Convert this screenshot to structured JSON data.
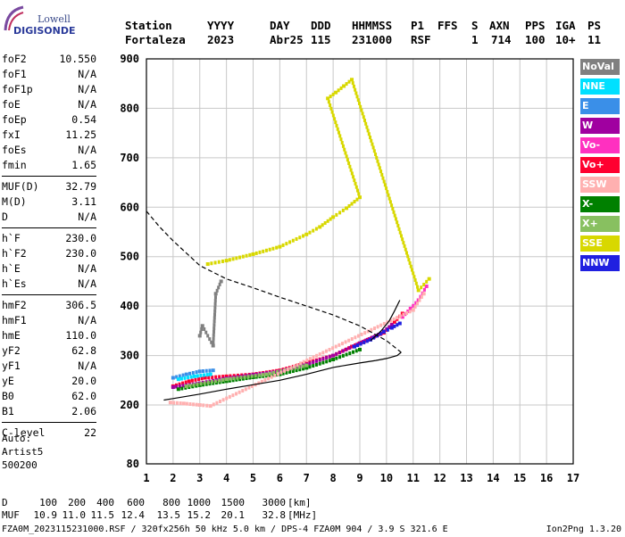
{
  "logo": {
    "line1": "Lowell",
    "line2": "DIGISONDE"
  },
  "header": {
    "labels": [
      "Station",
      "YYYY",
      "DAY",
      "DDD",
      "HHMMSS",
      "P1",
      "FFS",
      "S",
      "AXN",
      "PPS",
      "IGA",
      "PS"
    ],
    "values": [
      "Fortaleza",
      "2023",
      "Abr25",
      "115",
      "231000",
      "RSF",
      "1",
      "714",
      "100",
      "10+",
      "11"
    ]
  },
  "params": [
    [
      {
        "k": "foF2",
        "v": "10.550"
      },
      {
        "k": "foF1",
        "v": "N/A"
      },
      {
        "k": "foF1p",
        "v": "N/A"
      },
      {
        "k": "foE",
        "v": "N/A"
      },
      {
        "k": "foEp",
        "v": "0.54"
      },
      {
        "k": "fxI",
        "v": "11.25"
      },
      {
        "k": "foEs",
        "v": "N/A"
      },
      {
        "k": "fmin",
        "v": "1.65"
      }
    ],
    [
      {
        "k": "MUF(D)",
        "v": "32.79"
      },
      {
        "k": "M(D)",
        "v": "3.11"
      },
      {
        "k": "D",
        "v": "N/A"
      }
    ],
    [
      {
        "k": "h`F",
        "v": "230.0"
      },
      {
        "k": "h`F2",
        "v": "230.0"
      },
      {
        "k": "h`E",
        "v": "N/A"
      },
      {
        "k": "h`Es",
        "v": "N/A"
      }
    ],
    [
      {
        "k": "hmF2",
        "v": "306.5"
      },
      {
        "k": "hmF1",
        "v": "N/A"
      },
      {
        "k": "hmE",
        "v": "110.0"
      },
      {
        "k": "yF2",
        "v": "62.8"
      },
      {
        "k": "yF1",
        "v": "N/A"
      },
      {
        "k": "yE",
        "v": "20.0"
      },
      {
        "k": "B0",
        "v": "62.0"
      },
      {
        "k": "B1",
        "v": "2.06"
      }
    ],
    [
      {
        "k": "C-level",
        "v": "22"
      }
    ]
  ],
  "auto": {
    "line1": "Auto:",
    "line2": "Artist5",
    "line3": "500200"
  },
  "footer": {
    "d_label": "D",
    "d_values": [
      "100",
      "200",
      "400",
      "600",
      "800",
      "1000",
      "1500",
      "3000"
    ],
    "d_unit": "[km]",
    "muf_label": "MUF",
    "muf_values": [
      "10.9",
      "11.0",
      "11.5",
      "12.4",
      "13.5",
      "15.2",
      "20.1",
      "32.8"
    ],
    "muf_unit": "[MHz]",
    "fileline": "FZA0M_2023115231000.RSF / 320fx256h 50 kHz 5.0 km / DPS-4 FZA0M 904 / 3.9 S 321.6 E",
    "version": "Ion2Png 1.3.20"
  },
  "legend": [
    {
      "label": "NoVal",
      "color": "#808080"
    },
    {
      "label": "NNE",
      "color": "#00e0ff"
    },
    {
      "label": "E",
      "color": "#3a8fe8"
    },
    {
      "label": "W",
      "color": "#a000a0"
    },
    {
      "label": "Vo-",
      "color": "#ff30c0"
    },
    {
      "label": "Vo+",
      "color": "#ff0030"
    },
    {
      "label": "SSW",
      "color": "#ffb0b0"
    },
    {
      "label": "X-",
      "color": "#008000"
    },
    {
      "label": "X+",
      "color": "#88c060"
    },
    {
      "label": "SSE",
      "color": "#d8d800"
    },
    {
      "label": "NNW",
      "color": "#2020e0"
    }
  ],
  "chart_data": {
    "type": "scatter",
    "xlim": [
      1,
      17
    ],
    "ylim": [
      80,
      900
    ],
    "x_ticks": [
      "1",
      "2",
      "3",
      "4",
      "5",
      "6",
      "7",
      "8",
      "9",
      "10",
      "11",
      "12",
      "13",
      "14",
      "15",
      "16",
      "17"
    ],
    "y_ticks": [
      "80",
      "200",
      "300",
      "400",
      "500",
      "600",
      "700",
      "800",
      "900"
    ],
    "grid": true,
    "curves": {
      "true_height_profile": [
        [
          1.65,
          210
        ],
        [
          2,
          213
        ],
        [
          3,
          222
        ],
        [
          4,
          232
        ],
        [
          5,
          241
        ],
        [
          6,
          250
        ],
        [
          7,
          262
        ],
        [
          8,
          276
        ],
        [
          9,
          285
        ],
        [
          9.6,
          290
        ],
        [
          10,
          294
        ],
        [
          10.4,
          300
        ],
        [
          10.55,
          306.5
        ]
      ],
      "model_profile_dashed": [
        [
          1,
          592
        ],
        [
          1.5,
          560
        ],
        [
          2,
          532
        ],
        [
          3,
          482
        ],
        [
          4,
          455
        ],
        [
          5,
          437
        ],
        [
          6,
          418
        ],
        [
          7,
          400
        ],
        [
          8,
          382
        ],
        [
          9,
          360
        ],
        [
          10,
          330
        ],
        [
          10.55,
          306.5
        ]
      ],
      "o_trace_line": [
        [
          9.4,
          330
        ],
        [
          9.8,
          350
        ],
        [
          10.1,
          370
        ],
        [
          10.3,
          390
        ],
        [
          10.5,
          412
        ]
      ]
    },
    "trace_segments": [
      {
        "series": "Vo+",
        "points": [
          [
            2.0,
            238
          ],
          [
            2.6,
            248
          ],
          [
            3.2,
            255
          ],
          [
            4,
            258
          ],
          [
            5,
            262
          ],
          [
            6,
            270
          ],
          [
            7,
            285
          ],
          [
            8,
            300
          ],
          [
            8.7,
            318
          ],
          [
            9.3,
            332
          ],
          [
            9.9,
            346
          ],
          [
            10.3,
            368
          ],
          [
            10.6,
            385
          ]
        ]
      },
      {
        "series": "W",
        "points": [
          [
            2.0,
            236
          ],
          [
            3,
            244
          ],
          [
            4,
            254
          ],
          [
            5,
            261
          ],
          [
            6,
            268
          ],
          [
            7,
            282
          ],
          [
            8,
            300
          ],
          [
            9,
            325
          ],
          [
            9.8,
            345
          ],
          [
            10.2,
            362
          ]
        ]
      },
      {
        "series": "X-",
        "points": [
          [
            2.2,
            232
          ],
          [
            3,
            240
          ],
          [
            4,
            248
          ],
          [
            5,
            256
          ],
          [
            6,
            262
          ],
          [
            7,
            275
          ],
          [
            8,
            292
          ],
          [
            9,
            312
          ]
        ]
      },
      {
        "series": "X+",
        "points": [
          [
            2.5,
            238
          ],
          [
            4,
            252
          ],
          [
            5.5,
            262
          ],
          [
            7,
            280
          ]
        ]
      },
      {
        "series": "NNW",
        "points": [
          [
            8.8,
            318
          ],
          [
            9.4,
            332
          ],
          [
            9.9,
            348
          ],
          [
            10.2,
            356
          ],
          [
            10.5,
            365
          ]
        ]
      },
      {
        "series": "E",
        "points": [
          [
            2.0,
            255
          ],
          [
            2.5,
            262
          ],
          [
            3,
            268
          ],
          [
            3.5,
            270
          ]
        ]
      },
      {
        "series": "NNE",
        "points": [
          [
            2.2,
            252
          ],
          [
            2.8,
            258
          ],
          [
            3.4,
            262
          ]
        ]
      },
      {
        "series": "Vo-",
        "points": [
          [
            10.6,
            378
          ],
          [
            10.9,
            395
          ],
          [
            11.2,
            412
          ],
          [
            11.5,
            440
          ]
        ]
      },
      {
        "series": "SSW",
        "points": [
          [
            1.9,
            205
          ],
          [
            2.4,
            203
          ],
          [
            3,
            200
          ],
          [
            3.4,
            198
          ],
          [
            11.0,
            392
          ],
          [
            11.4,
            425
          ]
        ]
      },
      {
        "series": "SSE",
        "points": [
          [
            3.3,
            485
          ],
          [
            4,
            492
          ],
          [
            5,
            505
          ],
          [
            6,
            520
          ],
          [
            7,
            545
          ],
          [
            7.5,
            560
          ],
          [
            8,
            580
          ],
          [
            8.5,
            598
          ],
          [
            9,
            620
          ],
          [
            7.8,
            820
          ],
          [
            8.1,
            832
          ],
          [
            8.4,
            845
          ],
          [
            8.7,
            858
          ],
          [
            11.2,
            432
          ],
          [
            11.6,
            455
          ]
        ]
      },
      {
        "series": "NoVal",
        "points": [
          [
            3,
            340
          ],
          [
            3.1,
            360
          ],
          [
            3.5,
            320
          ],
          [
            3.6,
            425
          ],
          [
            3.8,
            450
          ]
        ]
      }
    ]
  }
}
